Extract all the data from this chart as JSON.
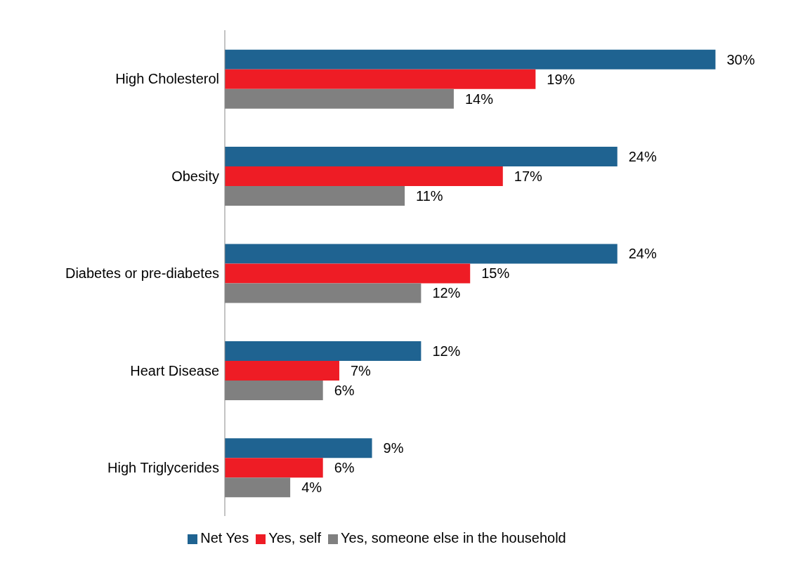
{
  "chart_data": {
    "type": "bar",
    "orientation": "horizontal",
    "categories": [
      "High Cholesterol",
      "Obesity",
      "Diabetes or pre-diabetes",
      "Heart Disease",
      "High Triglycerides"
    ],
    "series": [
      {
        "name": "Net Yes",
        "color": "#1f6391",
        "values": [
          30,
          24,
          24,
          12,
          9
        ],
        "value_labels": [
          "30%",
          "24%",
          "24%",
          "12%",
          "9%"
        ]
      },
      {
        "name": "Yes, self",
        "color": "#ee1c25",
        "values": [
          19,
          17,
          15,
          7,
          6
        ],
        "value_labels": [
          "19%",
          "17%",
          "15%",
          "7%",
          "6%"
        ]
      },
      {
        "name": "Yes, someone else in the household",
        "color": "#808080",
        "values": [
          14,
          11,
          12,
          6,
          4
        ],
        "value_labels": [
          "14%",
          "11%",
          "12%",
          "6%",
          "4%"
        ]
      }
    ],
    "tick_labels": "y",
    "legend": "bottom"
  }
}
